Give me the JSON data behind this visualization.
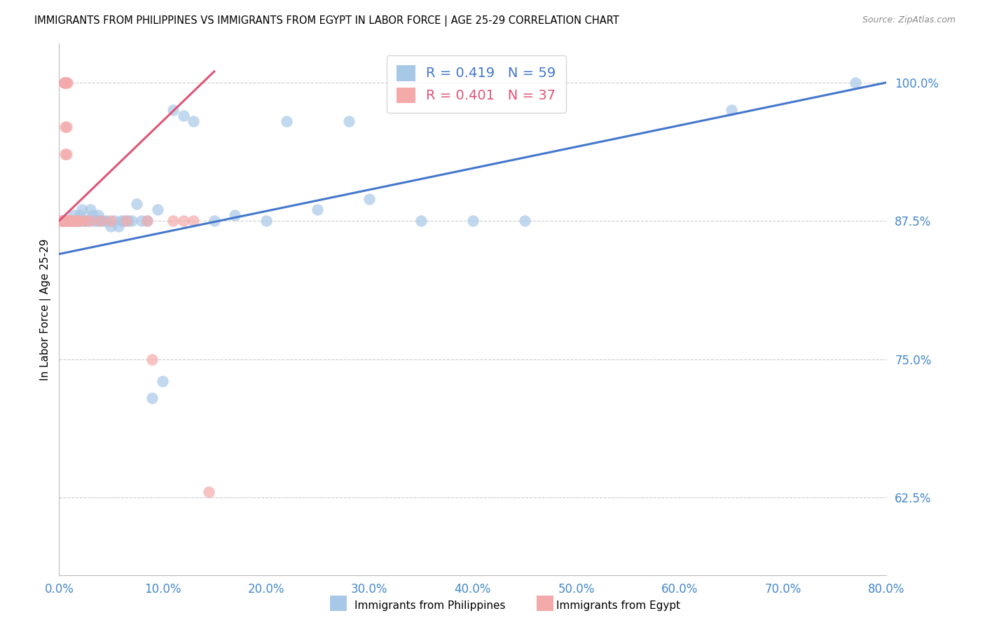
{
  "title": "IMMIGRANTS FROM PHILIPPINES VS IMMIGRANTS FROM EGYPT IN LABOR FORCE | AGE 25-29 CORRELATION CHART",
  "source": "Source: ZipAtlas.com",
  "ylabel": "In Labor Force | Age 25-29",
  "blue_R": 0.419,
  "blue_N": 59,
  "pink_R": 0.401,
  "pink_N": 37,
  "blue_color": "#A8C8E8",
  "pink_color": "#F4AAAA",
  "blue_line_color": "#4477CC",
  "pink_line_color": "#DD5577",
  "tick_color": "#4488CC",
  "legend_label_blue": "Immigrants from Philippines",
  "legend_label_pink": "Immigrants from Egypt",
  "xlim": [
    0.0,
    0.8
  ],
  "ylim": [
    0.555,
    1.035
  ],
  "y_ticks": [
    0.625,
    0.75,
    0.875,
    1.0
  ],
  "y_tick_labels": [
    "62.5%",
    "75.0%",
    "87.5%",
    "100.0%"
  ],
  "x_ticks": [
    0.0,
    0.1,
    0.2,
    0.3,
    0.4,
    0.5,
    0.6,
    0.7,
    0.8
  ],
  "x_tick_labels": [
    "0.0%",
    "10.0%",
    "20.0%",
    "30.0%",
    "40.0%",
    "50.0%",
    "60.0%",
    "70.0%",
    "80.0%"
  ],
  "blue_line_x0": 0.0,
  "blue_line_y0": 0.845,
  "blue_line_x1": 0.8,
  "blue_line_y1": 1.0,
  "pink_line_x0": 0.0,
  "pink_line_y0": 0.875,
  "pink_line_x1": 0.15,
  "pink_line_y1": 1.01,
  "blue_x": [
    0.003,
    0.004,
    0.005,
    0.006,
    0.007,
    0.008,
    0.009,
    0.01,
    0.011,
    0.012,
    0.013,
    0.014,
    0.015,
    0.016,
    0.017,
    0.018,
    0.019,
    0.02,
    0.021,
    0.022,
    0.024,
    0.026,
    0.028,
    0.03,
    0.032,
    0.034,
    0.036,
    0.038,
    0.04,
    0.043,
    0.046,
    0.05,
    0.053,
    0.057,
    0.06,
    0.063,
    0.067,
    0.07,
    0.075,
    0.08,
    0.085,
    0.09,
    0.095,
    0.1,
    0.11,
    0.12,
    0.13,
    0.15,
    0.17,
    0.2,
    0.22,
    0.25,
    0.28,
    0.3,
    0.35,
    0.4,
    0.45,
    0.65,
    0.77
  ],
  "blue_y": [
    0.875,
    0.875,
    0.875,
    0.875,
    0.875,
    0.875,
    0.875,
    0.875,
    0.875,
    0.875,
    0.875,
    0.88,
    0.875,
    0.875,
    0.875,
    0.875,
    0.875,
    0.88,
    0.875,
    0.885,
    0.875,
    0.875,
    0.875,
    0.885,
    0.88,
    0.875,
    0.875,
    0.88,
    0.875,
    0.875,
    0.875,
    0.87,
    0.875,
    0.87,
    0.875,
    0.875,
    0.875,
    0.875,
    0.89,
    0.875,
    0.875,
    0.715,
    0.885,
    0.73,
    0.975,
    0.97,
    0.965,
    0.875,
    0.88,
    0.875,
    0.965,
    0.885,
    0.965,
    0.895,
    0.875,
    0.875,
    0.875,
    0.975,
    1.0
  ],
  "pink_x": [
    0.002,
    0.003,
    0.004,
    0.004,
    0.005,
    0.005,
    0.005,
    0.006,
    0.006,
    0.006,
    0.007,
    0.007,
    0.007,
    0.008,
    0.008,
    0.009,
    0.009,
    0.009,
    0.01,
    0.011,
    0.012,
    0.013,
    0.015,
    0.016,
    0.018,
    0.02,
    0.025,
    0.03,
    0.04,
    0.05,
    0.065,
    0.085,
    0.09,
    0.11,
    0.12,
    0.13,
    0.145
  ],
  "pink_y": [
    0.875,
    0.875,
    0.875,
    0.875,
    1.0,
    1.0,
    1.0,
    1.0,
    0.96,
    0.935,
    1.0,
    0.96,
    0.935,
    1.0,
    0.875,
    0.875,
    0.875,
    0.875,
    0.875,
    0.875,
    0.875,
    0.875,
    0.875,
    0.875,
    0.875,
    0.875,
    0.875,
    0.875,
    0.875,
    0.875,
    0.875,
    0.875,
    0.75,
    0.875,
    0.875,
    0.875,
    0.63
  ]
}
